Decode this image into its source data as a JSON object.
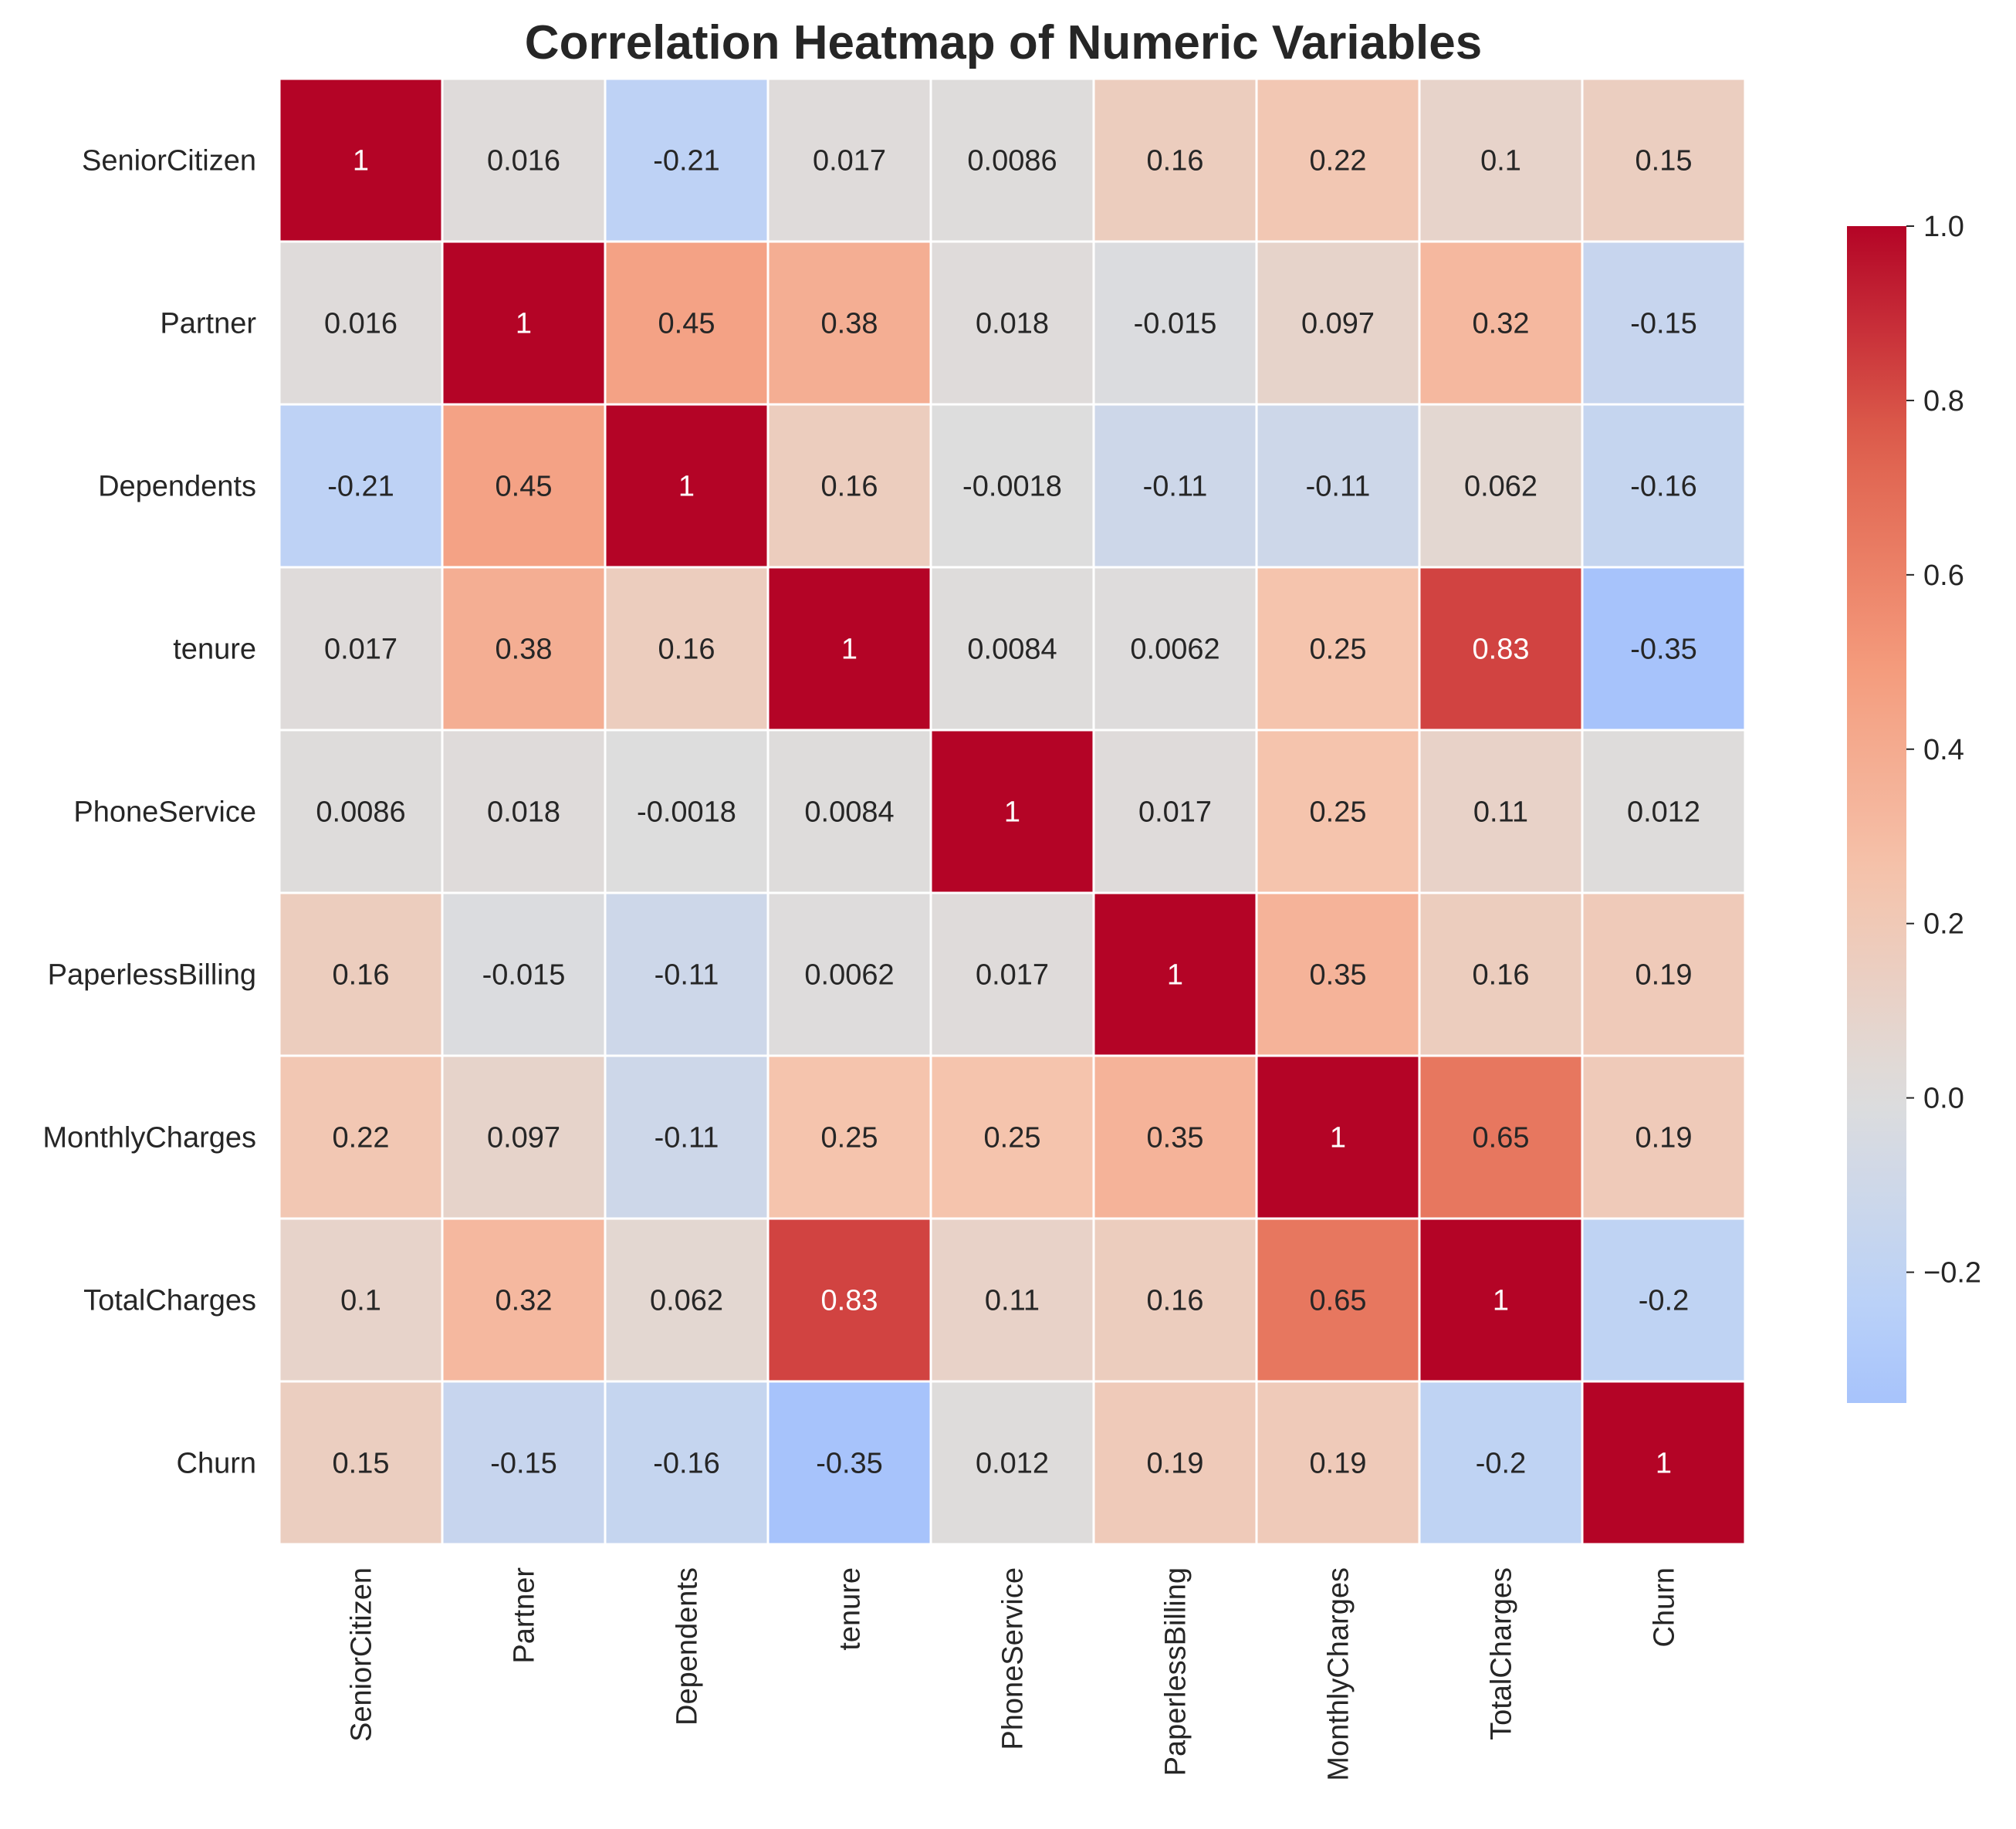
{
  "chart_data": {
    "type": "heatmap",
    "title": "Correlation Heatmap of Numeric Variables",
    "x_labels": [
      "SeniorCitizen",
      "Partner",
      "Dependents",
      "tenure",
      "PhoneService",
      "PaperlessBilling",
      "MonthlyCharges",
      "TotalCharges",
      "Churn"
    ],
    "y_labels": [
      "SeniorCitizen",
      "Partner",
      "Dependents",
      "tenure",
      "PhoneService",
      "PaperlessBilling",
      "MonthlyCharges",
      "TotalCharges",
      "Churn"
    ],
    "values": [
      [
        1,
        0.016,
        -0.21,
        0.017,
        0.0086,
        0.16,
        0.22,
        0.1,
        0.15
      ],
      [
        0.016,
        1,
        0.45,
        0.38,
        0.018,
        -0.015,
        0.097,
        0.32,
        -0.15
      ],
      [
        -0.21,
        0.45,
        1,
        0.16,
        -0.0018,
        -0.11,
        -0.11,
        0.062,
        -0.16
      ],
      [
        0.017,
        0.38,
        0.16,
        1,
        0.0084,
        0.0062,
        0.25,
        0.83,
        -0.35
      ],
      [
        0.0086,
        0.018,
        -0.0018,
        0.0084,
        1,
        0.017,
        0.25,
        0.11,
        0.012
      ],
      [
        0.16,
        -0.015,
        -0.11,
        0.0062,
        0.017,
        1,
        0.35,
        0.16,
        0.19
      ],
      [
        0.22,
        0.097,
        -0.11,
        0.25,
        0.25,
        0.35,
        1,
        0.65,
        0.19
      ],
      [
        0.1,
        0.32,
        0.062,
        0.83,
        0.11,
        0.16,
        0.65,
        1,
        -0.2
      ],
      [
        0.15,
        -0.15,
        -0.16,
        -0.35,
        0.012,
        0.19,
        0.19,
        -0.2,
        1
      ]
    ],
    "cell_labels": [
      [
        "1",
        "0.016",
        "-0.21",
        "0.017",
        "0.0086",
        "0.16",
        "0.22",
        "0.1",
        "0.15"
      ],
      [
        "0.016",
        "1",
        "0.45",
        "0.38",
        "0.018",
        "-0.015",
        "0.097",
        "0.32",
        "-0.15"
      ],
      [
        "-0.21",
        "0.45",
        "1",
        "0.16",
        "-0.0018",
        "-0.11",
        "-0.11",
        "0.062",
        "-0.16"
      ],
      [
        "0.017",
        "0.38",
        "0.16",
        "1",
        "0.0084",
        "0.0062",
        "0.25",
        "0.83",
        "-0.35"
      ],
      [
        "0.0086",
        "0.018",
        "-0.0018",
        "0.0084",
        "1",
        "0.017",
        "0.25",
        "0.11",
        "0.012"
      ],
      [
        "0.16",
        "-0.015",
        "-0.11",
        "0.0062",
        "0.017",
        "1",
        "0.35",
        "0.16",
        "0.19"
      ],
      [
        "0.22",
        "0.097",
        "-0.11",
        "0.25",
        "0.25",
        "0.35",
        "1",
        "0.65",
        "0.19"
      ],
      [
        "0.1",
        "0.32",
        "0.062",
        "0.83",
        "0.11",
        "0.16",
        "0.65",
        "1",
        "-0.2"
      ],
      [
        "0.15",
        "-0.15",
        "-0.16",
        "-0.35",
        "0.012",
        "0.19",
        "0.19",
        "-0.2",
        "1"
      ]
    ],
    "colormap": "coolwarm",
    "vmin": -0.35,
    "vmax": 1.0,
    "center": 0,
    "colorbar": {
      "ticks": [
        1.0,
        0.8,
        0.6,
        0.4,
        0.2,
        0.0,
        -0.2
      ],
      "tick_labels": [
        "1.0",
        "0.8",
        "0.6",
        "0.4",
        "0.2",
        "0.0",
        "−0.2"
      ],
      "placement": "right"
    },
    "grid": false
  },
  "colors": {
    "cell_border": "#ffffff",
    "text_dark": "#262626",
    "text_light": "#ffffff"
  }
}
